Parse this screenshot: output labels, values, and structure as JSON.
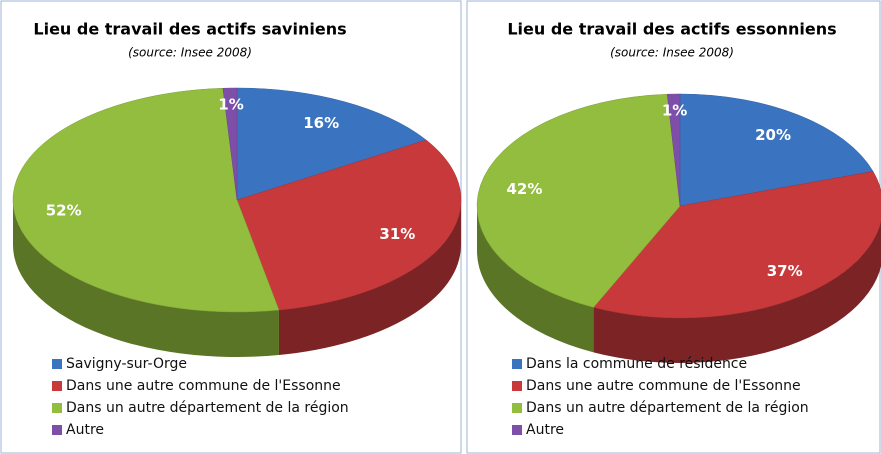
{
  "chart_data": [
    {
      "type": "pie",
      "title": "Lieu de travail des actifs saviniens",
      "subtitle": "(source: Insee 2008)",
      "categories": [
        "Savigny-sur-Orge",
        "Dans une autre commune de l'Essonne",
        "Dans un autre département de la région",
        "Autre"
      ],
      "values": [
        16,
        31,
        52,
        1
      ],
      "value_labels": [
        "16%",
        "31%",
        "52%",
        "1%"
      ],
      "colors": [
        "#3a74c0",
        "#c8393b",
        "#92bd3e",
        "#7e4fa8"
      ]
    },
    {
      "type": "pie",
      "title": "Lieu de travail des actifs essonniens",
      "subtitle": "(source: Insee 2008)",
      "categories": [
        "Dans la commune de résidence",
        "Dans une autre commune de l'Essonne",
        "Dans un autre département de la région",
        "Autre"
      ],
      "values": [
        20,
        37,
        42,
        1
      ],
      "value_labels": [
        "20%",
        "37%",
        "42%",
        "1%"
      ],
      "colors": [
        "#3a74c0",
        "#c8393b",
        "#92bd3e",
        "#7e4fa8"
      ]
    }
  ]
}
